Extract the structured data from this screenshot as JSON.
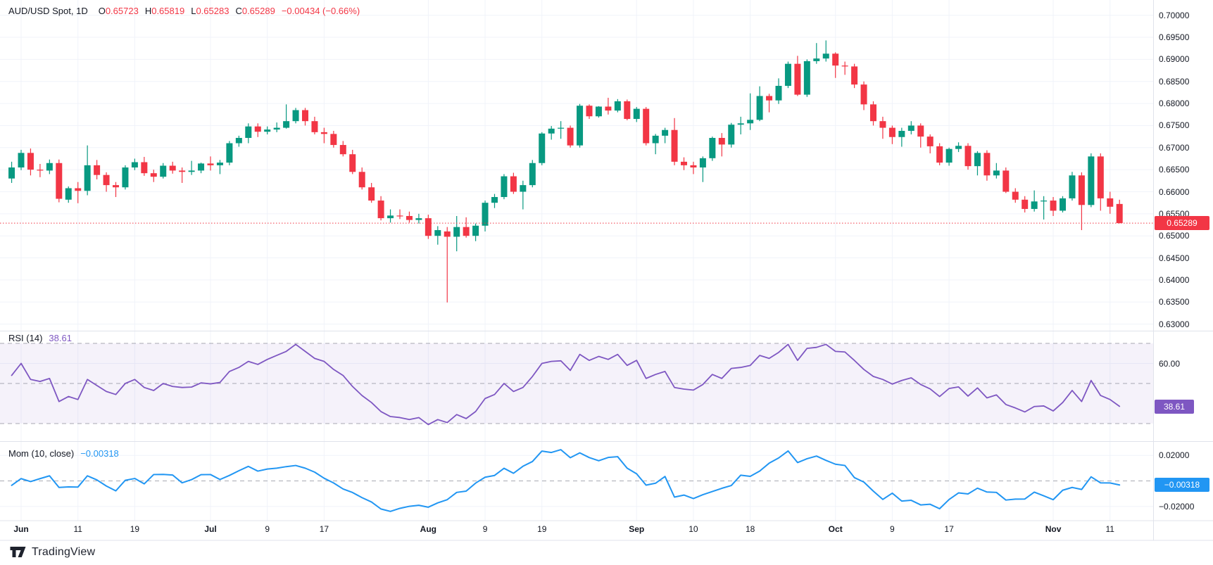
{
  "legend": {
    "symbol": "AUD/USD Spot, 1D",
    "o_label": "O",
    "o_value": "0.65723",
    "h_label": "H",
    "h_value": "0.65819",
    "l_label": "L",
    "l_value": "0.65283",
    "c_label": "C",
    "c_value": "0.65289",
    "change": "−0.00434 (−0.66%)"
  },
  "rsi_legend": {
    "name": "RSI (14)",
    "value": "38.61"
  },
  "mom_legend": {
    "name": "Mom (10, close)",
    "value": "−0.00318"
  },
  "badges": {
    "price": {
      "text": "0.65289",
      "value": 0.65289,
      "color": "#f23645"
    },
    "rsi": {
      "text": "38.61",
      "value": 38.61,
      "color": "#7e57c2"
    },
    "mom": {
      "text": "−0.00318",
      "value": -0.00318,
      "color": "#2196f3"
    }
  },
  "footer": {
    "brand": "TradingView"
  },
  "colors": {
    "up": "#089981",
    "down": "#f23645",
    "rsi_line": "#7e57c2",
    "mom_line": "#2196f3",
    "grid": "#f0f3fa",
    "separator": "#e0e3eb",
    "dashed": "#8c8f9a",
    "rsi_band_fill": "rgba(126,87,194,0.08)",
    "text": "#131722",
    "price_line": "#f23645"
  },
  "axes": {
    "price_labels": [
      {
        "label": "0.70000",
        "value": 0.7
      },
      {
        "label": "0.69500",
        "value": 0.695
      },
      {
        "label": "0.69000",
        "value": 0.69
      },
      {
        "label": "0.68500",
        "value": 0.685
      },
      {
        "label": "0.68000",
        "value": 0.68
      },
      {
        "label": "0.67500",
        "value": 0.675
      },
      {
        "label": "0.67000",
        "value": 0.67
      },
      {
        "label": "0.66500",
        "value": 0.665
      },
      {
        "label": "0.66000",
        "value": 0.66
      },
      {
        "label": "0.65500",
        "value": 0.655
      },
      {
        "label": "0.65000",
        "value": 0.65
      },
      {
        "label": "0.64500",
        "value": 0.645
      },
      {
        "label": "0.64000",
        "value": 0.64
      },
      {
        "label": "0.63500",
        "value": 0.635
      },
      {
        "label": "0.63000",
        "value": 0.63
      }
    ],
    "rsi_labels": [
      {
        "label": "60.00",
        "value": 60
      }
    ],
    "mom_labels": [
      {
        "label": "0.02000",
        "value": 0.02
      },
      {
        "label": "0.00000",
        "value": 0.0
      },
      {
        "label": "−0.02000",
        "value": -0.02
      }
    ],
    "date_ticks": [
      {
        "label": "Jun",
        "index": 1,
        "month": true
      },
      {
        "label": "11",
        "index": 7,
        "month": false
      },
      {
        "label": "19",
        "index": 13,
        "month": false
      },
      {
        "label": "Jul",
        "index": 21,
        "month": true
      },
      {
        "label": "9",
        "index": 27,
        "month": false
      },
      {
        "label": "17",
        "index": 33,
        "month": false
      },
      {
        "label": "Aug",
        "index": 44,
        "month": true
      },
      {
        "label": "9",
        "index": 50,
        "month": false
      },
      {
        "label": "19",
        "index": 56,
        "month": false
      },
      {
        "label": "Sep",
        "index": 66,
        "month": true
      },
      {
        "label": "10",
        "index": 72,
        "month": false
      },
      {
        "label": "18",
        "index": 78,
        "month": false
      },
      {
        "label": "Oct",
        "index": 87,
        "month": true
      },
      {
        "label": "9",
        "index": 93,
        "month": false
      },
      {
        "label": "17",
        "index": 99,
        "month": false
      },
      {
        "label": "Nov",
        "index": 110,
        "month": true
      },
      {
        "label": "11",
        "index": 116,
        "month": false
      }
    ]
  },
  "chart_data": {
    "type": "candlestick",
    "title": "AUD/USD Spot, 1D",
    "symbol": "AUD/USD Spot",
    "timeframe": "1D",
    "last_bar": {
      "open": 0.65723,
      "high": 0.65819,
      "low": 0.65283,
      "close": 0.65289,
      "change": -0.00434,
      "change_pct": -0.66
    },
    "price_axis_range": [
      0.63,
      0.7
    ],
    "current_price_line": 0.65289,
    "grid": true,
    "panels": [
      "price",
      "rsi",
      "momentum"
    ],
    "rsi_bands": [
      70,
      50,
      30
    ],
    "candles": [
      [
        "May 31",
        0.663,
        0.6668,
        0.662,
        0.6655
      ],
      [
        "Jun 3",
        0.6655,
        0.6695,
        0.6649,
        0.6688
      ],
      [
        "Jun 4",
        0.6688,
        0.6698,
        0.6637,
        0.665
      ],
      [
        "Jun 5",
        0.665,
        0.6663,
        0.6633,
        0.6648
      ],
      [
        "Jun 6",
        0.6648,
        0.6673,
        0.664,
        0.6665
      ],
      [
        "Jun 7",
        0.6665,
        0.6673,
        0.6576,
        0.6584
      ],
      [
        "Jun 10",
        0.6582,
        0.6612,
        0.6575,
        0.6608
      ],
      [
        "Jun 11",
        0.6608,
        0.6622,
        0.6574,
        0.6602
      ],
      [
        "Jun 12",
        0.6602,
        0.6705,
        0.6592,
        0.666
      ],
      [
        "Jun 13",
        0.666,
        0.6672,
        0.6628,
        0.6638
      ],
      [
        "Jun 14",
        0.6638,
        0.6644,
        0.66,
        0.6615
      ],
      [
        "Jun 17",
        0.6615,
        0.6622,
        0.6588,
        0.661
      ],
      [
        "Jun 18",
        0.661,
        0.666,
        0.6605,
        0.6655
      ],
      [
        "Jun 19",
        0.6655,
        0.6675,
        0.6649,
        0.6667
      ],
      [
        "Jun 20",
        0.6667,
        0.6679,
        0.6636,
        0.6642
      ],
      [
        "Jun 21",
        0.6642,
        0.665,
        0.6622,
        0.6634
      ],
      [
        "Jun 24",
        0.6634,
        0.6665,
        0.663,
        0.6659
      ],
      [
        "Jun 25",
        0.6659,
        0.6668,
        0.6641,
        0.6648
      ],
      [
        "Jun 26",
        0.6648,
        0.6655,
        0.662,
        0.6645
      ],
      [
        "Jun 27",
        0.6645,
        0.667,
        0.6638,
        0.6648
      ],
      [
        "Jun 28",
        0.6648,
        0.6666,
        0.6642,
        0.6664
      ],
      [
        "Jul 1",
        0.6664,
        0.668,
        0.6648,
        0.666
      ],
      [
        "Jul 2",
        0.666,
        0.6672,
        0.664,
        0.6666
      ],
      [
        "Jul 3",
        0.6666,
        0.6715,
        0.666,
        0.671
      ],
      [
        "Jul 4",
        0.671,
        0.6727,
        0.6702,
        0.6722
      ],
      [
        "Jul 5",
        0.6722,
        0.6755,
        0.671,
        0.6748
      ],
      [
        "Jul 8",
        0.6748,
        0.6755,
        0.6724,
        0.6736
      ],
      [
        "Jul 9",
        0.6736,
        0.6748,
        0.673,
        0.6741
      ],
      [
        "Jul 10",
        0.6741,
        0.6757,
        0.6735,
        0.6745
      ],
      [
        "Jul 11",
        0.6745,
        0.6798,
        0.6743,
        0.676
      ],
      [
        "Jul 12",
        0.676,
        0.679,
        0.6755,
        0.6785
      ],
      [
        "Jul 15",
        0.6785,
        0.679,
        0.675,
        0.676
      ],
      [
        "Jul 16",
        0.676,
        0.677,
        0.673,
        0.6735
      ],
      [
        "Jul 17",
        0.6735,
        0.6745,
        0.671,
        0.6731
      ],
      [
        "Jul 18",
        0.6731,
        0.6738,
        0.67,
        0.6706
      ],
      [
        "Jul 19",
        0.6706,
        0.6715,
        0.668,
        0.6685
      ],
      [
        "Jul 22",
        0.6685,
        0.6695,
        0.664,
        0.6645
      ],
      [
        "Jul 23",
        0.6645,
        0.6655,
        0.6605,
        0.661
      ],
      [
        "Jul 24",
        0.661,
        0.662,
        0.6575,
        0.658
      ],
      [
        "Jul 25",
        0.658,
        0.659,
        0.6535,
        0.654
      ],
      [
        "Jul 26",
        0.654,
        0.656,
        0.653,
        0.6546
      ],
      [
        "Jul 29",
        0.6546,
        0.656,
        0.6538,
        0.6545
      ],
      [
        "Jul 30",
        0.6545,
        0.6555,
        0.653,
        0.6536
      ],
      [
        "Jul 31",
        0.6536,
        0.655,
        0.6528,
        0.654
      ],
      [
        "Aug 1",
        0.654,
        0.6548,
        0.6493,
        0.65
      ],
      [
        "Aug 2",
        0.65,
        0.6522,
        0.648,
        0.6513
      ],
      [
        "Aug 5",
        0.651,
        0.652,
        0.6349,
        0.6498
      ],
      [
        "Aug 6",
        0.6498,
        0.6545,
        0.6465,
        0.652
      ],
      [
        "Aug 7",
        0.652,
        0.6542,
        0.6496,
        0.65
      ],
      [
        "Aug 8",
        0.65,
        0.6528,
        0.6488,
        0.6523
      ],
      [
        "Aug 9",
        0.6523,
        0.658,
        0.651,
        0.6575
      ],
      [
        "Aug 12",
        0.6575,
        0.6595,
        0.6563,
        0.6588
      ],
      [
        "Aug 13",
        0.6588,
        0.664,
        0.6583,
        0.6635
      ],
      [
        "Aug 14",
        0.6635,
        0.6643,
        0.6595,
        0.66
      ],
      [
        "Aug 15",
        0.66,
        0.6625,
        0.656,
        0.6615
      ],
      [
        "Aug 16",
        0.6615,
        0.6672,
        0.661,
        0.6665
      ],
      [
        "Aug 19",
        0.6665,
        0.6735,
        0.666,
        0.6732
      ],
      [
        "Aug 20",
        0.6732,
        0.6749,
        0.6718,
        0.6743
      ],
      [
        "Aug 21",
        0.6743,
        0.676,
        0.672,
        0.6745
      ],
      [
        "Aug 22",
        0.6745,
        0.675,
        0.67,
        0.6705
      ],
      [
        "Aug 23",
        0.6705,
        0.6799,
        0.67,
        0.6795
      ],
      [
        "Aug 26",
        0.6795,
        0.6798,
        0.6765,
        0.6771
      ],
      [
        "Aug 27",
        0.6771,
        0.6794,
        0.6768,
        0.6793
      ],
      [
        "Aug 28",
        0.6793,
        0.6813,
        0.6775,
        0.6784
      ],
      [
        "Aug 29",
        0.6784,
        0.681,
        0.678,
        0.6805
      ],
      [
        "Aug 30",
        0.6805,
        0.6809,
        0.6762,
        0.6765
      ],
      [
        "Sep 2",
        0.6765,
        0.6792,
        0.6758,
        0.6788
      ],
      [
        "Sep 3",
        0.6788,
        0.6792,
        0.6705,
        0.671
      ],
      [
        "Sep 4",
        0.671,
        0.6731,
        0.6685,
        0.6727
      ],
      [
        "Sep 5",
        0.6727,
        0.6745,
        0.671,
        0.674
      ],
      [
        "Sep 6",
        0.674,
        0.6767,
        0.666,
        0.6668
      ],
      [
        "Sep 9",
        0.6668,
        0.6678,
        0.6649,
        0.666
      ],
      [
        "Sep 10",
        0.666,
        0.6668,
        0.664,
        0.6655
      ],
      [
        "Sep 11",
        0.6655,
        0.668,
        0.6622,
        0.6676
      ],
      [
        "Sep 12",
        0.6676,
        0.6725,
        0.667,
        0.6722
      ],
      [
        "Sep 13",
        0.6722,
        0.6733,
        0.668,
        0.6707
      ],
      [
        "Sep 16",
        0.6707,
        0.6756,
        0.67,
        0.6752
      ],
      [
        "Sep 17",
        0.6752,
        0.677,
        0.673,
        0.6755
      ],
      [
        "Sep 18",
        0.6755,
        0.6823,
        0.674,
        0.6763
      ],
      [
        "Sep 19",
        0.6763,
        0.6839,
        0.676,
        0.6817
      ],
      [
        "Sep 20",
        0.6817,
        0.6822,
        0.678,
        0.6807
      ],
      [
        "Sep 23",
        0.6807,
        0.6857,
        0.6799,
        0.684
      ],
      [
        "Sep 24",
        0.684,
        0.6895,
        0.6835,
        0.689
      ],
      [
        "Sep 25",
        0.689,
        0.6908,
        0.6817,
        0.682
      ],
      [
        "Sep 26",
        0.682,
        0.69,
        0.6815,
        0.6896
      ],
      [
        "Sep 27",
        0.6896,
        0.6937,
        0.689,
        0.6902
      ],
      [
        "Sep 30",
        0.6902,
        0.6943,
        0.6895,
        0.6913
      ],
      [
        "Oct 1",
        0.6913,
        0.6916,
        0.6858,
        0.6886
      ],
      [
        "Oct 2",
        0.6886,
        0.6895,
        0.6865,
        0.6884
      ],
      [
        "Oct 3",
        0.6884,
        0.689,
        0.6835,
        0.6843
      ],
      [
        "Oct 4",
        0.6843,
        0.685,
        0.6785,
        0.6798
      ],
      [
        "Oct 7",
        0.6798,
        0.6805,
        0.675,
        0.676
      ],
      [
        "Oct 8",
        0.676,
        0.677,
        0.672,
        0.6745
      ],
      [
        "Oct 9",
        0.6745,
        0.675,
        0.6708,
        0.6724
      ],
      [
        "Oct 10",
        0.6724,
        0.6745,
        0.6702,
        0.6738
      ],
      [
        "Oct 11",
        0.6738,
        0.676,
        0.673,
        0.675
      ],
      [
        "Oct 14",
        0.675,
        0.6755,
        0.67,
        0.6725
      ],
      [
        "Oct 15",
        0.6725,
        0.673,
        0.6687,
        0.6703
      ],
      [
        "Oct 16",
        0.6703,
        0.671,
        0.666,
        0.6666
      ],
      [
        "Oct 17",
        0.6666,
        0.67,
        0.6659,
        0.6697
      ],
      [
        "Oct 18",
        0.6697,
        0.6712,
        0.669,
        0.6704
      ],
      [
        "Oct 21",
        0.6704,
        0.671,
        0.665,
        0.6658
      ],
      [
        "Oct 22",
        0.6658,
        0.6692,
        0.6637,
        0.6688
      ],
      [
        "Oct 23",
        0.6688,
        0.6694,
        0.6625,
        0.6637
      ],
      [
        "Oct 24",
        0.6637,
        0.6665,
        0.663,
        0.6648
      ],
      [
        "Oct 25",
        0.6648,
        0.6655,
        0.6597,
        0.66
      ],
      [
        "Oct 28",
        0.66,
        0.6608,
        0.6575,
        0.6582
      ],
      [
        "Oct 29",
        0.6582,
        0.659,
        0.6553,
        0.6561
      ],
      [
        "Oct 30",
        0.6561,
        0.6603,
        0.6555,
        0.6578
      ],
      [
        "Oct 31",
        0.6578,
        0.659,
        0.6537,
        0.658
      ],
      [
        "Nov 1",
        0.658,
        0.6588,
        0.6545,
        0.6557
      ],
      [
        "Nov 4",
        0.6557,
        0.659,
        0.6553,
        0.6585
      ],
      [
        "Nov 5",
        0.6585,
        0.6645,
        0.658,
        0.6637
      ],
      [
        "Nov 6",
        0.6637,
        0.6644,
        0.6513,
        0.657
      ],
      [
        "Nov 7",
        0.657,
        0.6687,
        0.6565,
        0.668
      ],
      [
        "Nov 8",
        0.668,
        0.6687,
        0.6557,
        0.6585
      ],
      [
        "Nov 11",
        0.6585,
        0.66,
        0.655,
        0.6566
      ],
      [
        "Nov 12",
        0.65723,
        0.65819,
        0.65283,
        0.65289
      ]
    ],
    "series": [
      {
        "name": "RSI (14)",
        "current": 38.61,
        "values": [
          54,
          60,
          52,
          51,
          52.5,
          41,
          43.5,
          42,
          52,
          49,
          46,
          44.5,
          50,
          52,
          48,
          46.5,
          50,
          48.5,
          48,
          48.2,
          50.3,
          49.8,
          50.5,
          56,
          58,
          61,
          59.5,
          62,
          64,
          66,
          69.5,
          66,
          62.5,
          61,
          57,
          54,
          48.5,
          44,
          40.5,
          36,
          33.5,
          33,
          32,
          33,
          29.5,
          32,
          30.5,
          34.5,
          32.5,
          36,
          42.5,
          44.5,
          50,
          46,
          48,
          53.5,
          60,
          61,
          61.3,
          56.5,
          64.5,
          61.5,
          63.5,
          62,
          64.5,
          59,
          61.5,
          52.5,
          54.5,
          56,
          48,
          47.2,
          46.7,
          49.5,
          54.5,
          52.5,
          57.5,
          58,
          59,
          64,
          62.5,
          65.5,
          69.5,
          61.5,
          67.5,
          68,
          69.5,
          66,
          65.7,
          61.5,
          57,
          53.5,
          52,
          49.7,
          51.5,
          52.8,
          49.5,
          47.3,
          43.5,
          47.5,
          48.3,
          43.7,
          47.8,
          42.8,
          44.3,
          39.5,
          37.8,
          35.8,
          38.5,
          38.8,
          36.3,
          40.5,
          46.5,
          41,
          51.5,
          44,
          42,
          38.61
        ]
      },
      {
        "name": "Mom (10, close)",
        "current": -0.00318,
        "values": [
          -0.0035,
          0.0018,
          -0.0005,
          0.0018,
          0.004,
          -0.0051,
          -0.0047,
          -0.0048,
          0.004,
          0.0008,
          -0.004,
          -0.0078,
          0.0005,
          0.0019,
          -0.0023,
          0.005,
          0.0051,
          0.0046,
          -0.0015,
          0.001,
          0.0049,
          0.005,
          0.0011,
          0.0043,
          0.008,
          0.0114,
          0.0077,
          0.0093,
          0.01,
          0.0112,
          0.0121,
          0.01,
          0.0069,
          0.0021,
          -0.0016,
          -0.0063,
          -0.0091,
          -0.0131,
          -0.0165,
          -0.022,
          -0.0239,
          -0.0215,
          -0.0199,
          -0.0191,
          -0.0206,
          -0.0172,
          -0.0147,
          -0.009,
          -0.008,
          -0.0017,
          0.0029,
          0.0043,
          0.0099,
          0.006,
          0.0115,
          0.0152,
          0.0234,
          0.0223,
          0.0245,
          0.0182,
          0.022,
          0.0183,
          0.0158,
          0.0184,
          0.019,
          0.01,
          0.0056,
          -0.0033,
          -0.0018,
          0.0035,
          -0.0127,
          -0.0111,
          -0.0138,
          -0.0108,
          -0.0083,
          -0.0058,
          -0.0036,
          0.0045,
          0.0036,
          0.0077,
          0.0139,
          0.018,
          0.0235,
          0.0144,
          0.0174,
          0.0195,
          0.0161,
          0.0131,
          0.0121,
          0.0026,
          -0.0009,
          -0.008,
          -0.0145,
          -0.0096,
          -0.0158,
          -0.0152,
          -0.0188,
          -0.0183,
          -0.0218,
          -0.0146,
          -0.0094,
          -0.0102,
          -0.0057,
          -0.0087,
          -0.009,
          -0.015,
          -0.0143,
          -0.0142,
          -0.0088,
          -0.0117,
          -0.0147,
          -0.0073,
          -0.0051,
          -0.0067,
          0.0032,
          -0.0015,
          -0.0016,
          -0.00318
        ]
      }
    ]
  }
}
